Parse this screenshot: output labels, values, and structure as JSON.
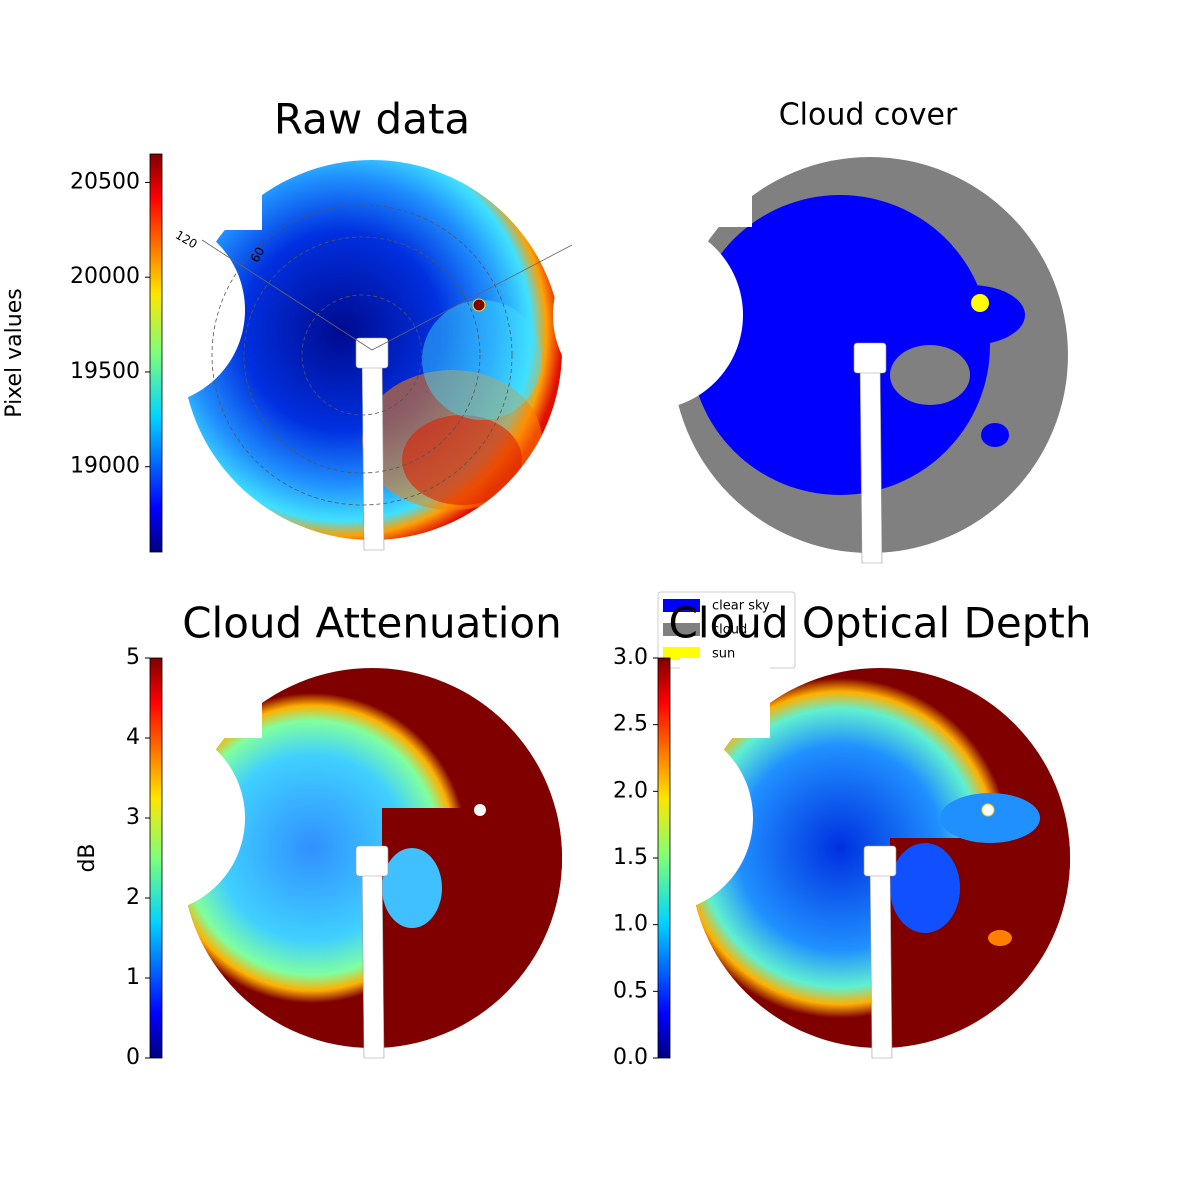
{
  "chart_data": [
    {
      "type": "image",
      "title": "Raw data",
      "colormap": "jet",
      "ylabel": "Pixel values",
      "ylim": [
        18550,
        20650
      ],
      "yticks": [
        19000,
        19500,
        20000,
        20500
      ],
      "annotations": [
        "120",
        "60"
      ]
    },
    {
      "type": "image",
      "title": "Cloud cover",
      "series": [
        {
          "name": "clear sky",
          "color": "#0000ff"
        },
        {
          "name": "cloud",
          "color": "#808080"
        },
        {
          "name": "sun",
          "color": "#ffff00"
        }
      ]
    },
    {
      "type": "image",
      "title": "Cloud Attenuation",
      "colormap": "jet",
      "ylabel": "dB",
      "ylim": [
        0,
        5
      ],
      "yticks": [
        0,
        1,
        2,
        3,
        4,
        5
      ]
    },
    {
      "type": "image",
      "title": "Cloud Optical Depth",
      "colormap": "jet",
      "ylim": [
        0,
        3
      ],
      "yticks": [
        {
          "value": 0,
          "label": "0.0"
        },
        0.5,
        {
          "value": 1,
          "label": "1.0"
        },
        1.5,
        {
          "value": 2,
          "label": "2.0"
        },
        2.5,
        {
          "value": 3,
          "label": "3.0"
        }
      ]
    }
  ]
}
